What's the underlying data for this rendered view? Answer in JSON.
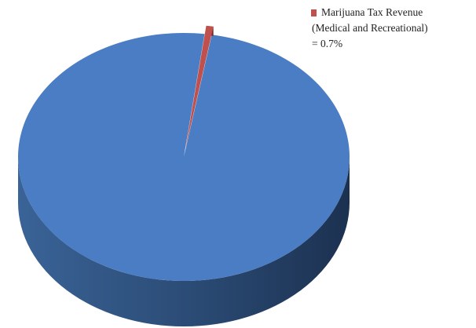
{
  "chart_data": {
    "type": "pie",
    "three_d": true,
    "legend_position": "top-right",
    "slices": [
      {
        "name": "",
        "value": 99.3,
        "color": "#4a7dc3"
      },
      {
        "name": "Marijuana Tax Revenue (Medical and Recreational)",
        "value": 0.7,
        "color": "#c0504d"
      }
    ],
    "legend": {
      "color": "#c0504d",
      "lines": [
        "Marijuana Tax Revenue",
        "(Medical and Recreational)",
        "= 0.7%"
      ]
    }
  }
}
